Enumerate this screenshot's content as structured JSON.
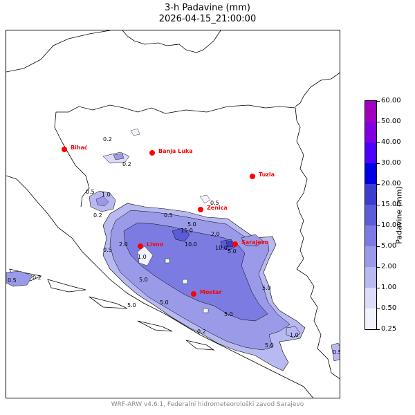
{
  "title": {
    "line1": "3-h Padavine (mm)",
    "line2": "2026-04-15_21:00:00"
  },
  "colorbar": {
    "label": "Padavine (mm)",
    "levels": [
      "0.25",
      "0.50",
      "1.00",
      "2.00",
      "5.00",
      "10.00",
      "15.00",
      "20.00",
      "30.00",
      "40.00",
      "50.00",
      "60.00"
    ],
    "colors": [
      "#f3f3fd",
      "#dcdcf8",
      "#b9b9f1",
      "#9a9ae9",
      "#7b7be1",
      "#5c5cd8",
      "#3d3dcf",
      "#0000e6",
      "#4d00ff",
      "#8000e0",
      "#a000c0"
    ]
  },
  "cities": [
    {
      "name": "Bihać"
    },
    {
      "name": "Banja Luka"
    },
    {
      "name": "Tuzla"
    },
    {
      "name": "Zenica"
    },
    {
      "name": "Sarajevo"
    },
    {
      "name": "Livno"
    },
    {
      "name": "Mostar"
    }
  ],
  "contour_labels": [
    "0.2",
    "0.5",
    "1.0",
    "2.0",
    "5.0",
    "10.0",
    "15.0"
  ],
  "credit": "WRF-ARW v4.6.1, Federalni hidrometeorološki zavod Sarajevo"
}
